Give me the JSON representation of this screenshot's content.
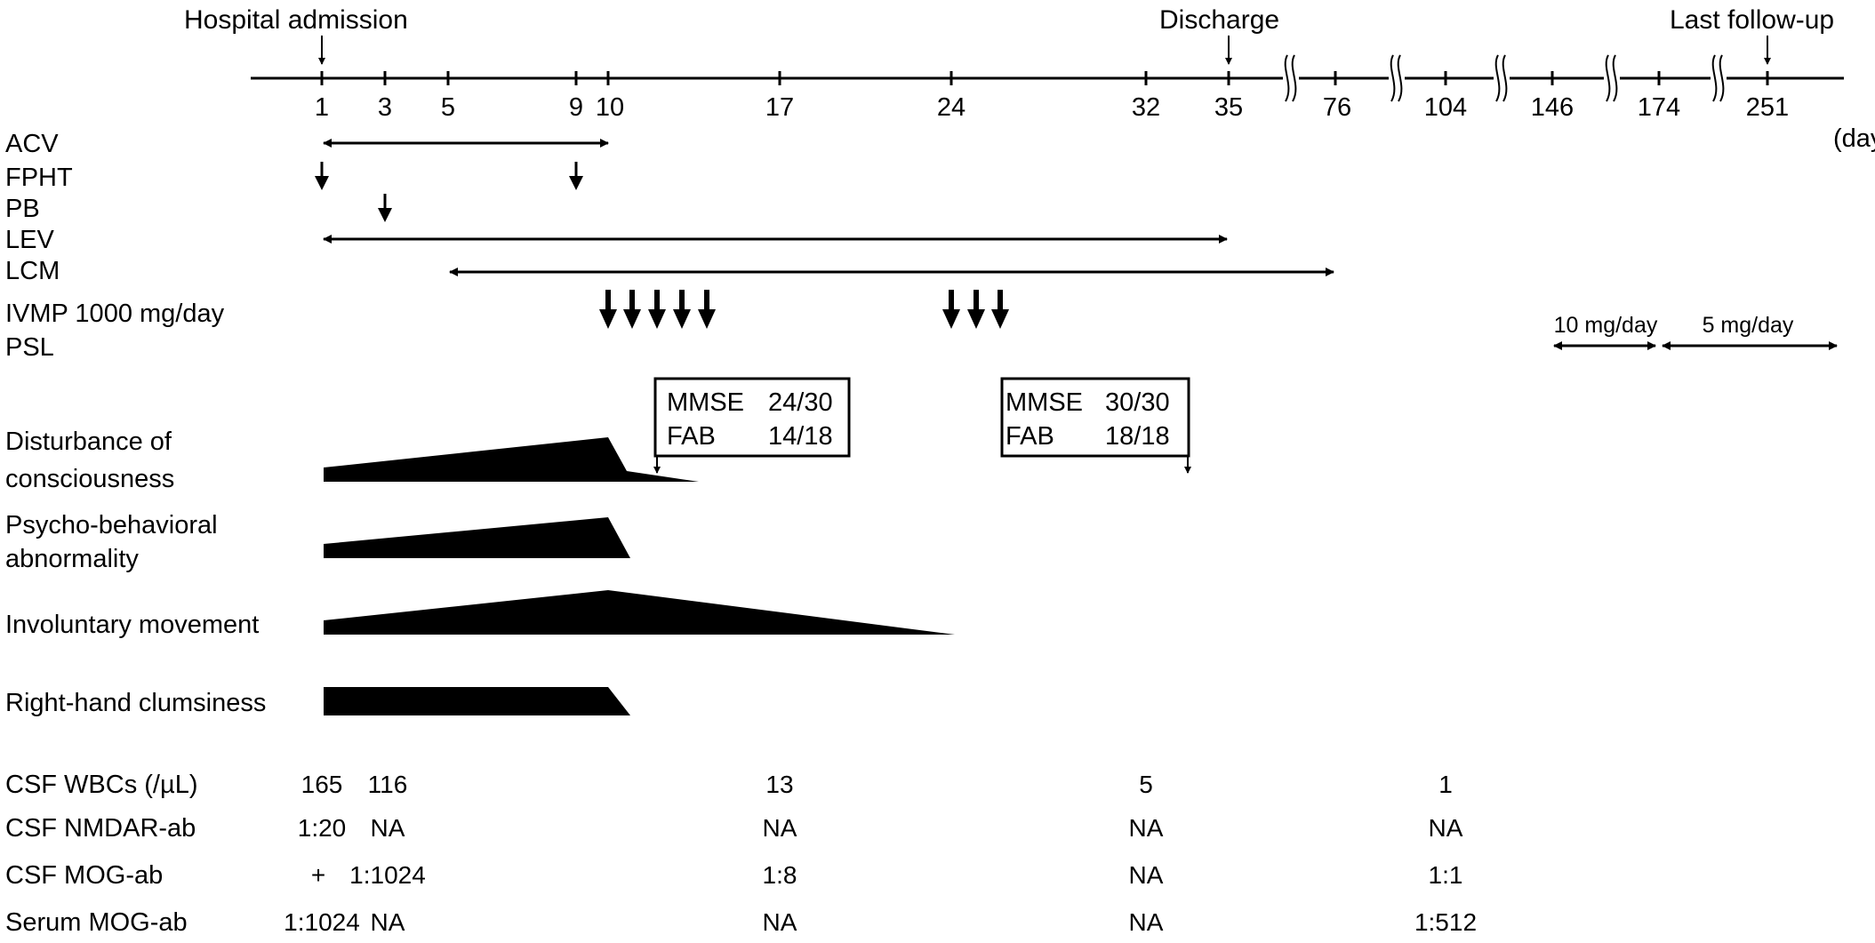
{
  "top_labels": {
    "admission": "Hospital admission",
    "discharge": "Discharge",
    "last_followup": "Last follow-up"
  },
  "axis": {
    "unit": "(day)",
    "ticks": [
      "1",
      "3",
      "5",
      "9",
      "10",
      "17",
      "24",
      "32",
      "35",
      "76",
      "104",
      "146",
      "174",
      "251"
    ]
  },
  "treatments": {
    "acv": "ACV",
    "fpht": "FPHT",
    "pb": "PB",
    "lev": "LEV",
    "lcm": "LCM",
    "ivmp": "IVMP 1000 mg/day",
    "psl": "PSL",
    "psl_dose_1": "10 mg/day",
    "psl_dose_2": "5 mg/day"
  },
  "assessments": [
    {
      "mmse_label": "MMSE",
      "mmse_value": "24/30",
      "fab_label": "FAB",
      "fab_value": "14/18"
    },
    {
      "mmse_label": "MMSE",
      "mmse_value": "30/30",
      "fab_label": "FAB",
      "fab_value": "18/18"
    }
  ],
  "symptoms": {
    "consciousness_1": "Disturbance of",
    "consciousness_2": "consciousness",
    "psycho_1": "Psycho-behavioral",
    "psycho_2": "abnormality",
    "involuntary": "Involuntary movement",
    "clumsiness": "Right-hand clumsiness"
  },
  "labs": {
    "csf_wbc": {
      "label": "CSF WBCs (/µL)",
      "values": [
        "165",
        "116",
        "13",
        "5",
        "1"
      ]
    },
    "csf_nmdar": {
      "label": "CSF NMDAR-ab",
      "values": [
        "1:20",
        "NA",
        "NA",
        "NA",
        "NA"
      ]
    },
    "csf_mog": {
      "label": "CSF MOG-ab",
      "values": [
        "+",
        "1:1024",
        "1:8",
        "NA",
        "1:1"
      ]
    },
    "serum_mog": {
      "label": "Serum MOG-ab",
      "values": [
        "1:1024",
        "NA",
        "NA",
        "NA",
        "1:512"
      ]
    }
  }
}
